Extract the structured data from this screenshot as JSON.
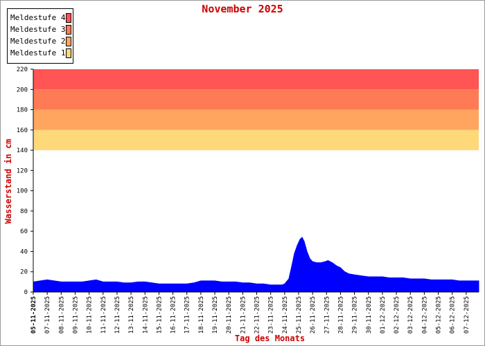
{
  "chart_data": {
    "type": "area",
    "title": "November 2025",
    "xlabel": "Tag des Monats",
    "ylabel": "Wasserstand in cm",
    "ylim": [
      0,
      220
    ],
    "yticks": [
      0,
      20,
      40,
      60,
      80,
      100,
      120,
      140,
      160,
      180,
      200,
      220
    ],
    "xlim": [
      0,
      31.9
    ],
    "xticks": [
      {
        "x": 0,
        "label": "05-11-2025",
        "bold": true
      },
      {
        "x": 1,
        "label": "07-11-2025"
      },
      {
        "x": 2,
        "label": "08-11-2025"
      },
      {
        "x": 3,
        "label": "09-11-2025"
      },
      {
        "x": 4,
        "label": "10-11-2025"
      },
      {
        "x": 5,
        "label": "11-11-2025"
      },
      {
        "x": 6,
        "label": "12-11-2025"
      },
      {
        "x": 7,
        "label": "13-11-2025"
      },
      {
        "x": 8,
        "label": "14-11-2025"
      },
      {
        "x": 9,
        "label": "15-11-2025"
      },
      {
        "x": 10,
        "label": "16-11-2025"
      },
      {
        "x": 11,
        "label": "17-11-2025"
      },
      {
        "x": 12,
        "label": "18-11-2025"
      },
      {
        "x": 13,
        "label": "19-11-2025"
      },
      {
        "x": 14,
        "label": "20-11-2025"
      },
      {
        "x": 15,
        "label": "21-11-2025"
      },
      {
        "x": 16,
        "label": "22-11-2025"
      },
      {
        "x": 17,
        "label": "23-11-2025"
      },
      {
        "x": 18,
        "label": "24-11-2025"
      },
      {
        "x": 19,
        "label": "25-11-2025"
      },
      {
        "x": 20,
        "label": "26-11-2025"
      },
      {
        "x": 21,
        "label": "27-11-2025"
      },
      {
        "x": 22,
        "label": "28-11-2025"
      },
      {
        "x": 23,
        "label": "29-11-2025"
      },
      {
        "x": 24,
        "label": "30-11-2025"
      },
      {
        "x": 25,
        "label": "01-12-2025"
      },
      {
        "x": 26,
        "label": "02-12-2025"
      },
      {
        "x": 27,
        "label": "03-12-2025"
      },
      {
        "x": 28,
        "label": "04-12-2025"
      },
      {
        "x": 29,
        "label": "05-12-2025"
      },
      {
        "x": 30,
        "label": "06-12-2025"
      },
      {
        "x": 31,
        "label": "07-12-2025"
      }
    ],
    "bands": [
      {
        "name": "Meldestufe 4",
        "from": 200,
        "to": 220,
        "color": "#ff5555"
      },
      {
        "name": "Meldestufe 3",
        "from": 180,
        "to": 200,
        "color": "#ff7b55"
      },
      {
        "name": "Meldestufe 2",
        "from": 160,
        "to": 180,
        "color": "#ffa560"
      },
      {
        "name": "Meldestufe 1",
        "from": 140,
        "to": 160,
        "color": "#ffd87a"
      }
    ],
    "series": [
      {
        "color": "#0000ff",
        "points": [
          [
            0,
            10
          ],
          [
            0.5,
            11
          ],
          [
            1,
            12
          ],
          [
            1.5,
            11
          ],
          [
            2,
            10
          ],
          [
            2.5,
            10
          ],
          [
            3,
            10
          ],
          [
            3.5,
            10
          ],
          [
            4,
            11
          ],
          [
            4.5,
            12
          ],
          [
            5,
            10
          ],
          [
            5.5,
            10
          ],
          [
            6,
            10
          ],
          [
            6.5,
            9
          ],
          [
            7,
            9
          ],
          [
            7.5,
            10
          ],
          [
            8,
            10
          ],
          [
            8.5,
            9
          ],
          [
            9,
            8
          ],
          [
            9.5,
            8
          ],
          [
            10,
            8
          ],
          [
            10.5,
            8
          ],
          [
            11,
            8
          ],
          [
            11.5,
            9
          ],
          [
            12,
            11
          ],
          [
            12.5,
            11
          ],
          [
            13,
            11
          ],
          [
            13.5,
            10
          ],
          [
            14,
            10
          ],
          [
            14.5,
            10
          ],
          [
            15,
            9
          ],
          [
            15.5,
            9
          ],
          [
            16,
            8
          ],
          [
            16.5,
            8
          ],
          [
            17,
            7
          ],
          [
            17.5,
            7
          ],
          [
            17.8,
            7
          ],
          [
            18,
            8
          ],
          [
            18.3,
            13
          ],
          [
            18.5,
            25
          ],
          [
            18.7,
            38
          ],
          [
            18.9,
            46
          ],
          [
            19.1,
            52
          ],
          [
            19.25,
            54
          ],
          [
            19.4,
            50
          ],
          [
            19.6,
            40
          ],
          [
            19.8,
            33
          ],
          [
            20,
            30
          ],
          [
            20.3,
            29
          ],
          [
            20.6,
            29
          ],
          [
            20.9,
            30
          ],
          [
            21.1,
            31
          ],
          [
            21.4,
            29
          ],
          [
            21.7,
            26
          ],
          [
            22,
            24
          ],
          [
            22.3,
            20
          ],
          [
            22.6,
            18
          ],
          [
            23,
            17
          ],
          [
            23.5,
            16
          ],
          [
            24,
            15
          ],
          [
            24.5,
            15
          ],
          [
            25,
            15
          ],
          [
            25.5,
            14
          ],
          [
            26,
            14
          ],
          [
            26.5,
            14
          ],
          [
            27,
            13
          ],
          [
            27.5,
            13
          ],
          [
            28,
            13
          ],
          [
            28.5,
            12
          ],
          [
            29,
            12
          ],
          [
            29.5,
            12
          ],
          [
            30,
            12
          ],
          [
            30.5,
            11
          ],
          [
            31,
            11
          ],
          [
            31.5,
            11
          ],
          [
            31.9,
            11
          ]
        ]
      }
    ]
  }
}
